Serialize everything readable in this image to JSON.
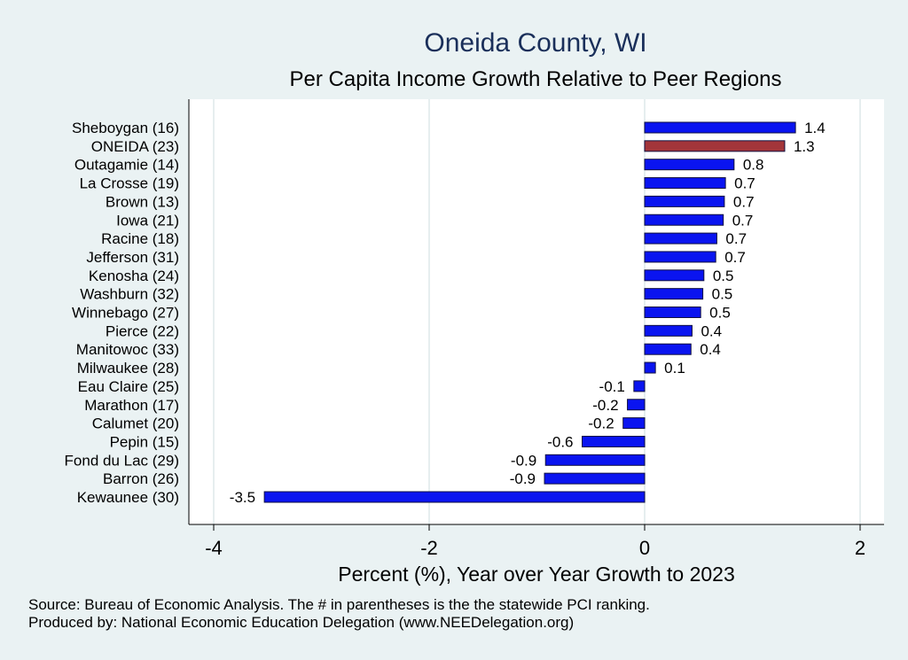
{
  "chart_data": {
    "type": "bar",
    "orientation": "horizontal",
    "title": "Oneida County, WI",
    "subtitle": "Per Capita Income Growth Relative to Peer Regions",
    "xlabel": "Percent (%), Year over Year Growth to 2023",
    "ylabel": "",
    "xlim": [
      -4,
      2
    ],
    "xticks": [
      "-4",
      "-2",
      "0",
      "2"
    ],
    "grid": true,
    "categories": [
      "Sheboygan (16)",
      "ONEIDA (23)",
      "Outagamie (14)",
      "La Crosse (19)",
      "Brown (13)",
      "Iowa (21)",
      "Racine (18)",
      "Jefferson (31)",
      "Kenosha (24)",
      "Washburn (32)",
      "Winnebago (27)",
      "Pierce (22)",
      "Manitowoc (33)",
      "Milwaukee (28)",
      "Eau Claire (25)",
      "Marathon (17)",
      "Calumet (20)",
      "Pepin (15)",
      "Fond du Lac (29)",
      "Barron (26)",
      "Kewaunee (30)"
    ],
    "values": [
      1.4,
      1.3,
      0.83,
      0.75,
      0.74,
      0.73,
      0.67,
      0.66,
      0.55,
      0.54,
      0.52,
      0.44,
      0.43,
      0.1,
      -0.1,
      -0.16,
      -0.2,
      -0.58,
      -0.92,
      -0.93,
      -3.53
    ],
    "value_labels": [
      "1.4",
      "1.3",
      "0.8",
      "0.7",
      "0.7",
      "0.7",
      "0.7",
      "0.7",
      "0.5",
      "0.5",
      "0.5",
      "0.4",
      "0.4",
      "0.1",
      "-0.1",
      "-0.2",
      "-0.2",
      "-0.6",
      "-0.9",
      "-0.9",
      "-3.5"
    ],
    "highlight_category": "ONEIDA (23)",
    "colors": {
      "bar": "#0a14f0",
      "highlight": "#a3353a",
      "bar_stroke": "#101040",
      "background": "#eaf2f3",
      "plot_bg": "#ffffff",
      "grid": "#e6eeef"
    }
  },
  "footer": {
    "source": "Source: Bureau of Economic Analysis. The # in parentheses is the the statewide PCI ranking.",
    "produced": "Produced by: National Economic Education Delegation (www.NEEDelegation.org)"
  }
}
